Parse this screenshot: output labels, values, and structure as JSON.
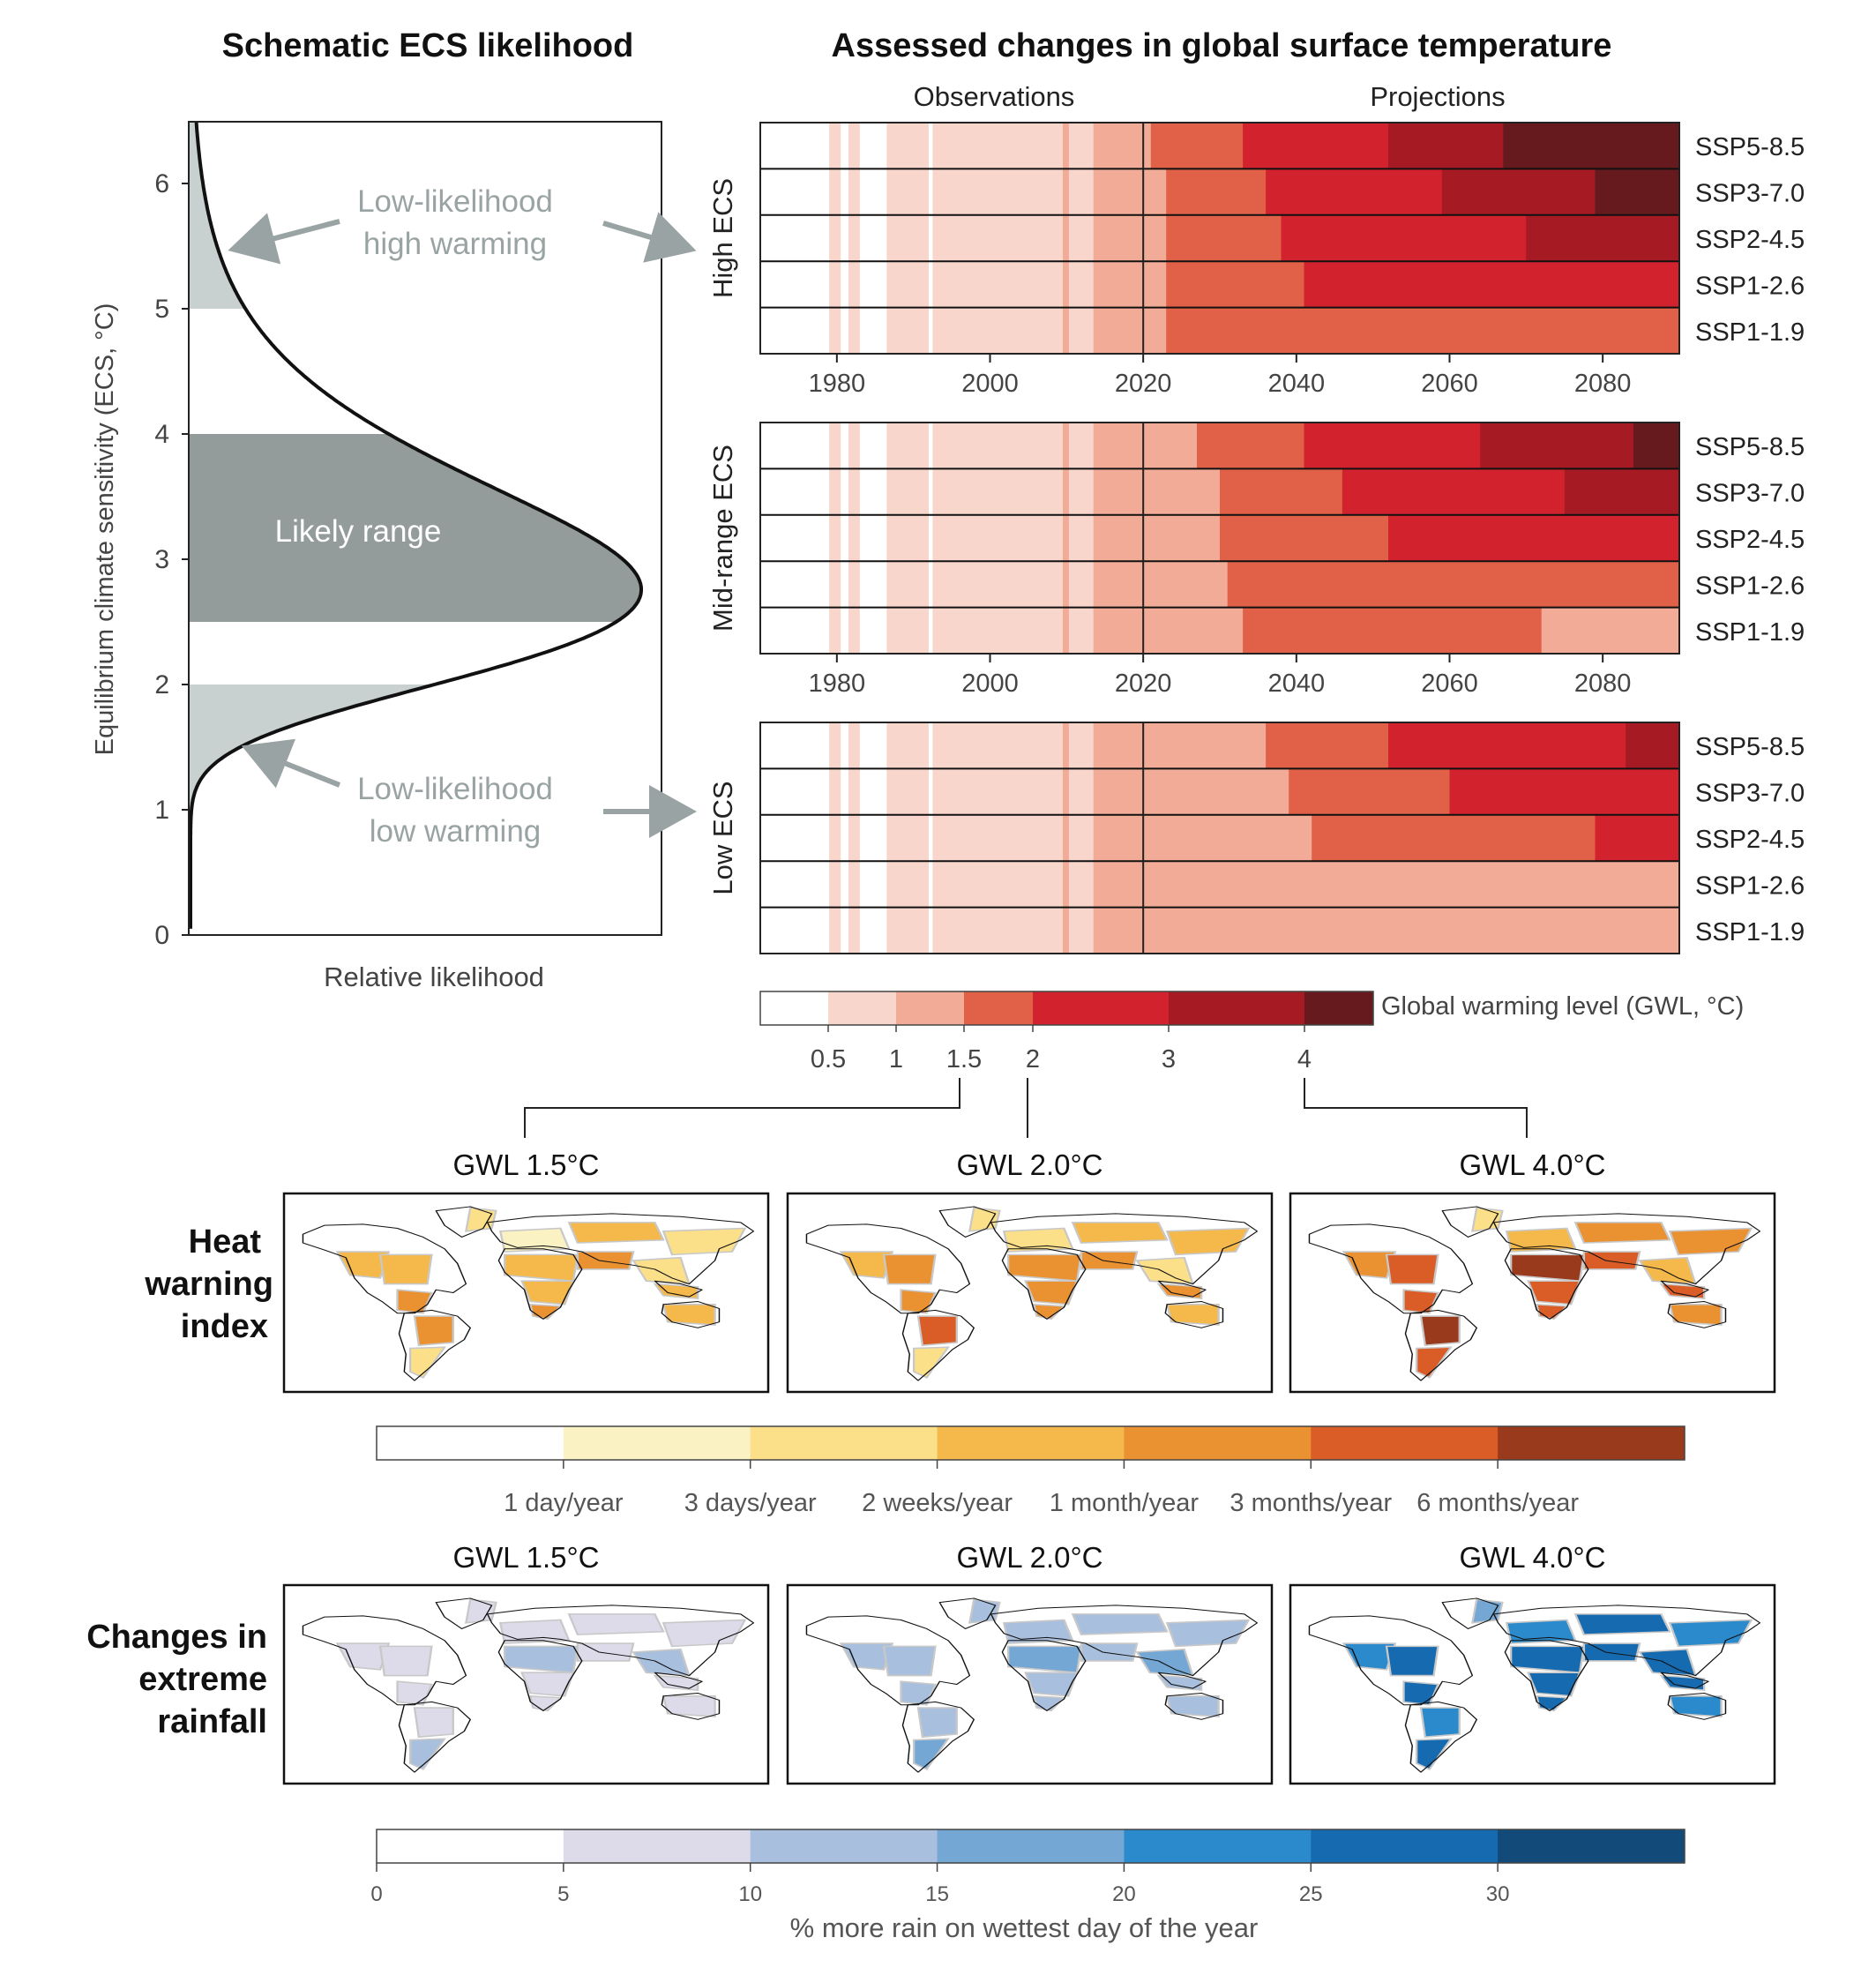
{
  "panel_left": {
    "title": "Schematic ECS likelihood",
    "ylabel": "Equilibrium climate sensitivity (ECS, °C)",
    "xlabel": "Relative likelihood",
    "yticks": [
      "0",
      "1",
      "2",
      "3",
      "4",
      "5",
      "6"
    ],
    "likely_label": "Likely range",
    "high_label_1": "Low-likelihood",
    "high_label_2": "high warming",
    "low_label_1": "Low-likelihood",
    "low_label_2": "low warming"
  },
  "panel_right": {
    "title": "Assessed changes in global surface temperature",
    "observations_label": "Observations",
    "projections_label": "Projections",
    "xticks": [
      "1980",
      "2000",
      "2020",
      "2040",
      "2060",
      "2080"
    ],
    "group_labels": [
      "High ECS",
      "Mid-range ECS",
      "Low ECS"
    ],
    "scenarios": [
      "SSP5-8.5",
      "SSP3-7.0",
      "SSP2-4.5",
      "SSP1-2.6",
      "SSP1-1.9"
    ],
    "gwl_legend_label": "Global warming level (GWL, °C)",
    "gwl_ticks": [
      "0.5",
      "1",
      "1.5",
      "2",
      "3",
      "4"
    ]
  },
  "maps": {
    "column_titles": [
      "GWL 1.5°C",
      "GWL 2.0°C",
      "GWL 4.0°C"
    ],
    "heat_row_label": [
      "Heat",
      "warning",
      "index"
    ],
    "rain_row_label": [
      "Changes in",
      "extreme",
      "rainfall"
    ],
    "heat_legend_labels": [
      "1 day/year",
      "3 days/year",
      "2 weeks/year",
      "1 month/year",
      "3 months/year",
      "6 months/year"
    ],
    "rain_legend_ticks": [
      "0",
      "5",
      "10",
      "15",
      "20",
      "25",
      "30"
    ],
    "rain_legend_label": "% more rain on wettest day of the year"
  },
  "colors": {
    "gwl": [
      "#ffffff",
      "#f9d6cc",
      "#f1ab96",
      "#e06048",
      "#d2222d",
      "#a61a24",
      "#661a1e"
    ],
    "heat": [
      "#ffffff",
      "#fbf2c4",
      "#fce089",
      "#f5b94b",
      "#ea9132",
      "#da5d27",
      "#9a3a1c"
    ],
    "rain": [
      "#ffffff",
      "#dddbe9",
      "#a9bfde",
      "#74a7d4",
      "#2b8acb",
      "#166bb0",
      "#124a7a"
    ],
    "likely_fill": "#939b9b",
    "tail_fill": "#c8d0d0",
    "annotation_gray": "#9aa3a3"
  },
  "chart_data": [
    {
      "type": "area",
      "title": "Schematic ECS likelihood",
      "xlabel": "Relative likelihood",
      "ylabel": "Equilibrium climate sensitivity (ECS, °C)",
      "ylim": [
        0,
        6.5
      ],
      "likely_range": [
        2.5,
        4.0
      ],
      "low_likelihood_high_warming": [
        5.0,
        6.5
      ],
      "low_likelihood_low_warming": [
        1.0,
        2.0
      ],
      "mode": 3.0
    },
    {
      "type": "heatmap",
      "title": "Assessed changes in global surface temperature",
      "xlim": [
        1970,
        2090
      ],
      "divider_year": 2020,
      "legend_bins": [
        0,
        0.5,
        1,
        1.5,
        2,
        3,
        4
      ],
      "observations": {
        "runs": [
          [
            1970,
            1979,
            0
          ],
          [
            1979,
            1980.5,
            1
          ],
          [
            1980.5,
            1981.5,
            0
          ],
          [
            1981.5,
            1983,
            1
          ],
          [
            1983,
            1986.5,
            0
          ],
          [
            1986.5,
            1992,
            1
          ],
          [
            1992,
            1992.5,
            0
          ],
          [
            1992.5,
            2009.5,
            1
          ],
          [
            2009.5,
            2010.3,
            2
          ],
          [
            2010.3,
            2013.5,
            1
          ],
          [
            2013.5,
            2020,
            2
          ]
        ]
      },
      "groups": [
        {
          "name": "High ECS",
          "series": [
            {
              "name": "SSP5-8.5",
              "bins": [
                [
                  2020,
                  2021,
                  2
                ],
                [
                  2021,
                  2033,
                  3
                ],
                [
                  2033,
                  2052,
                  4
                ],
                [
                  2052,
                  2067,
                  5
                ],
                [
                  2067,
                  2090,
                  6
                ]
              ]
            },
            {
              "name": "SSP3-7.0",
              "bins": [
                [
                  2020,
                  2023,
                  2
                ],
                [
                  2023,
                  2036,
                  3
                ],
                [
                  2036,
                  2059,
                  4
                ],
                [
                  2059,
                  2079,
                  5
                ],
                [
                  2079,
                  2090,
                  6
                ]
              ]
            },
            {
              "name": "SSP2-4.5",
              "bins": [
                [
                  2020,
                  2023,
                  2
                ],
                [
                  2023,
                  2038,
                  3
                ],
                [
                  2038,
                  2070,
                  4
                ],
                [
                  2070,
                  2090,
                  5
                ]
              ]
            },
            {
              "name": "SSP1-2.6",
              "bins": [
                [
                  2020,
                  2023,
                  2
                ],
                [
                  2023,
                  2041,
                  3
                ],
                [
                  2041,
                  2090,
                  4
                ]
              ]
            },
            {
              "name": "SSP1-1.9",
              "bins": [
                [
                  2020,
                  2023,
                  2
                ],
                [
                  2023,
                  2090,
                  3
                ]
              ]
            }
          ]
        },
        {
          "name": "Mid-range ECS",
          "series": [
            {
              "name": "SSP5-8.5",
              "bins": [
                [
                  2020,
                  2027,
                  2
                ],
                [
                  2027,
                  2041,
                  3
                ],
                [
                  2041,
                  2064,
                  4
                ],
                [
                  2064,
                  2084,
                  5
                ],
                [
                  2084,
                  2090,
                  6
                ]
              ]
            },
            {
              "name": "SSP3-7.0",
              "bins": [
                [
                  2020,
                  2030,
                  2
                ],
                [
                  2030,
                  2046,
                  3
                ],
                [
                  2046,
                  2075,
                  4
                ],
                [
                  2075,
                  2090,
                  5
                ]
              ]
            },
            {
              "name": "SSP2-4.5",
              "bins": [
                [
                  2020,
                  2030,
                  2
                ],
                [
                  2030,
                  2052,
                  3
                ],
                [
                  2052,
                  2090,
                  4
                ]
              ]
            },
            {
              "name": "SSP1-2.6",
              "bins": [
                [
                  2020,
                  2031,
                  2
                ],
                [
                  2031,
                  2090,
                  3
                ]
              ]
            },
            {
              "name": "SSP1-1.9",
              "bins": [
                [
                  2020,
                  2033,
                  2
                ],
                [
                  2033,
                  2072,
                  3
                ],
                [
                  2072,
                  2090,
                  2
                ]
              ]
            }
          ]
        },
        {
          "name": "Low ECS",
          "series": [
            {
              "name": "SSP5-8.5",
              "bins": [
                [
                  2020,
                  2036,
                  2
                ],
                [
                  2036,
                  2052,
                  3
                ],
                [
                  2052,
                  2083,
                  4
                ],
                [
                  2083,
                  2090,
                  5
                ]
              ]
            },
            {
              "name": "SSP3-7.0",
              "bins": [
                [
                  2020,
                  2039,
                  2
                ],
                [
                  2039,
                  2060,
                  3
                ],
                [
                  2060,
                  2090,
                  4
                ]
              ]
            },
            {
              "name": "SSP2-4.5",
              "bins": [
                [
                  2020,
                  2042,
                  2
                ],
                [
                  2042,
                  2079,
                  3
                ],
                [
                  2079,
                  2090,
                  4
                ]
              ]
            },
            {
              "name": "SSP1-2.6",
              "bins": [
                [
                  2020,
                  2090,
                  2
                ]
              ]
            },
            {
              "name": "SSP1-1.9",
              "bins": [
                [
                  2020,
                  2090,
                  2
                ]
              ]
            }
          ]
        }
      ]
    },
    {
      "type": "heatmap",
      "title": "Heat warning index",
      "panels": [
        "GWL 1.5°C",
        "GWL 2.0°C",
        "GWL 4.0°C"
      ],
      "legend_bins": [
        "1 day/year",
        "3 days/year",
        "2 weeks/year",
        "1 month/year",
        "3 months/year",
        "6 months/year"
      ]
    },
    {
      "type": "heatmap",
      "title": "Changes in extreme rainfall",
      "panels": [
        "GWL 1.5°C",
        "GWL 2.0°C",
        "GWL 4.0°C"
      ],
      "legend_ticks": [
        0,
        5,
        10,
        15,
        20,
        25,
        30
      ],
      "legend_label": "% more rain on wettest day of the year"
    }
  ]
}
